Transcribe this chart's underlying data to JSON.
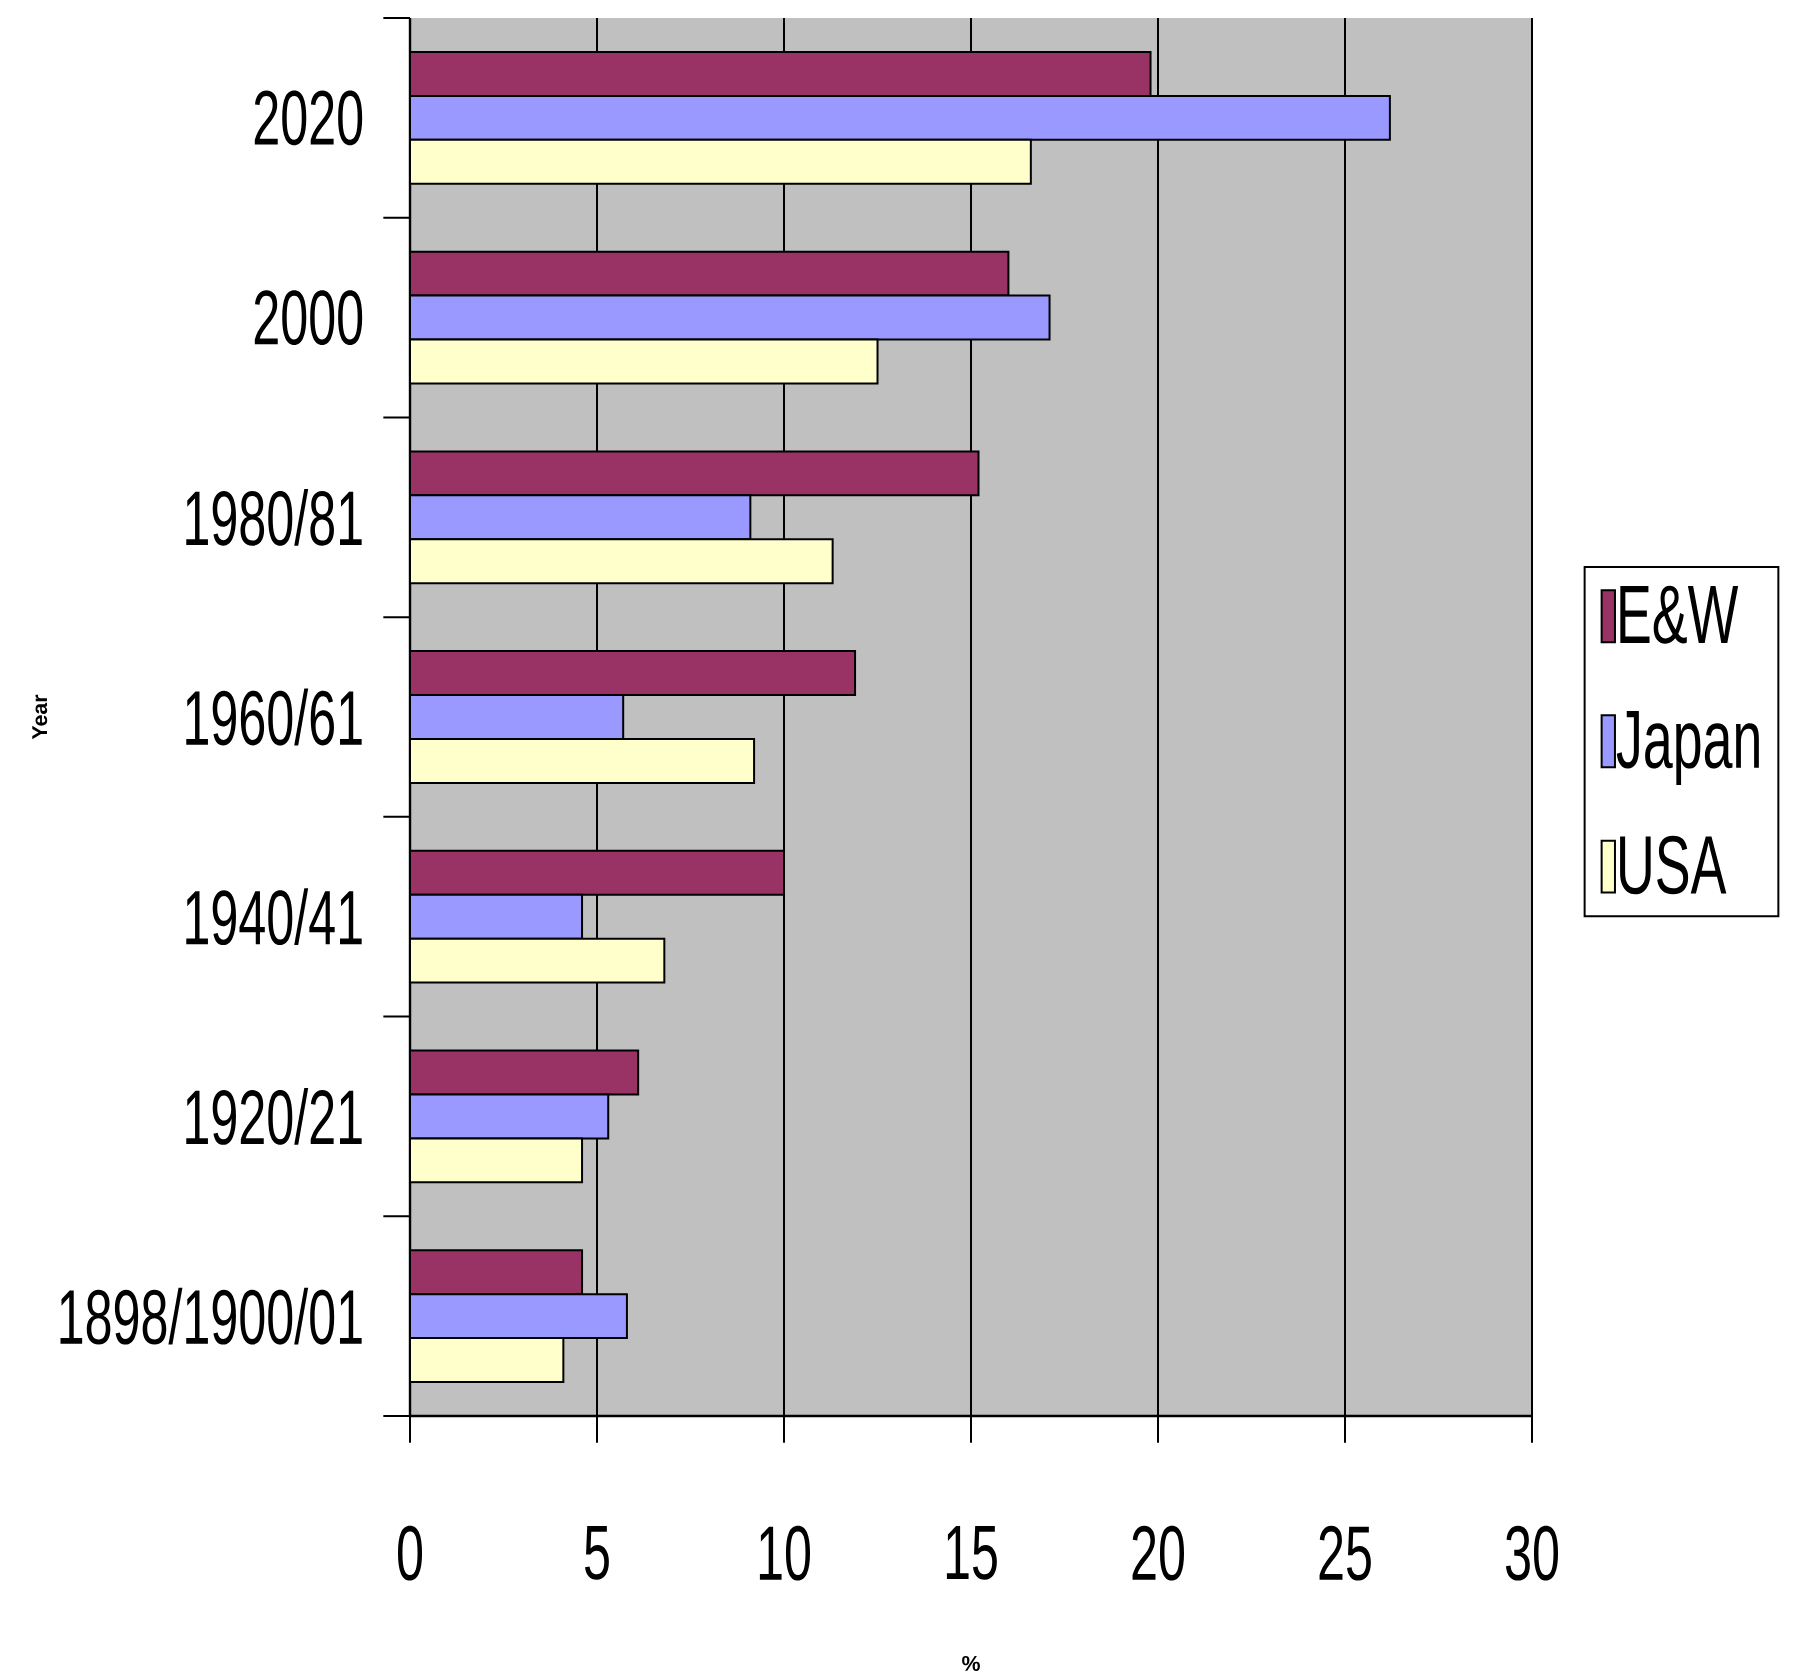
{
  "chart_data": {
    "type": "bar",
    "orientation": "horizontal",
    "categories": [
      "2020",
      "2000",
      "1980/81",
      "1960/61",
      "1940/41",
      "1920/21",
      "1898/1900/01"
    ],
    "series": [
      {
        "name": "E&W",
        "color": "#993366",
        "values": [
          19.8,
          16.0,
          15.2,
          11.9,
          10.0,
          6.1,
          4.6
        ]
      },
      {
        "name": "Japan",
        "color": "#9999ff",
        "values": [
          26.2,
          17.1,
          9.1,
          5.7,
          4.6,
          5.3,
          5.8
        ]
      },
      {
        "name": "USA",
        "color": "#ffffcc",
        "values": [
          16.6,
          12.5,
          11.3,
          9.2,
          6.8,
          4.6,
          4.1
        ]
      }
    ],
    "xlabel": "%",
    "ylabel": "Year",
    "xlim": [
      0,
      30
    ],
    "xticks": [
      0,
      5,
      10,
      15,
      20,
      25,
      30
    ],
    "grid": "x",
    "legend": "right"
  }
}
